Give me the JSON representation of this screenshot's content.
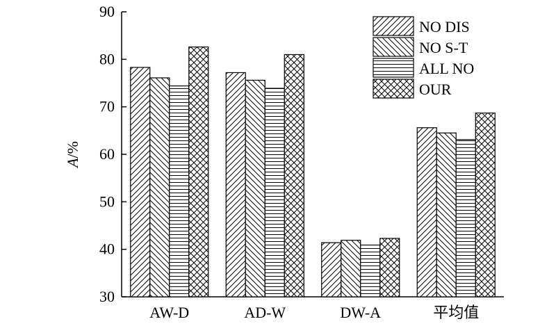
{
  "chart_data": {
    "type": "bar",
    "categories": [
      "AW-D",
      "AD-W",
      "DW-A",
      "平均值"
    ],
    "series": [
      {
        "name": "NO DIS",
        "pattern": "diag-forward",
        "values": [
          78.3,
          77.2,
          41.4,
          65.6
        ]
      },
      {
        "name": "NO S-T",
        "pattern": "diag-backward",
        "values": [
          76.1,
          75.6,
          41.9,
          64.5
        ]
      },
      {
        "name": "ALL NO",
        "pattern": "horizontal",
        "values": [
          74.4,
          73.9,
          40.9,
          63.1
        ]
      },
      {
        "name": "OUR",
        "pattern": "crosshatch",
        "values": [
          82.6,
          81.0,
          42.3,
          68.7
        ]
      }
    ],
    "ylabel": "A/%",
    "ylabel_italic_part": "A",
    "ylabel_rest": "/%",
    "ylim": [
      30,
      90
    ],
    "yticks": [
      30,
      40,
      50,
      60,
      70,
      80,
      90
    ],
    "grid": false,
    "legend_position": "top-right",
    "colors": {
      "stroke": "#000000",
      "background": "#ffffff"
    }
  }
}
